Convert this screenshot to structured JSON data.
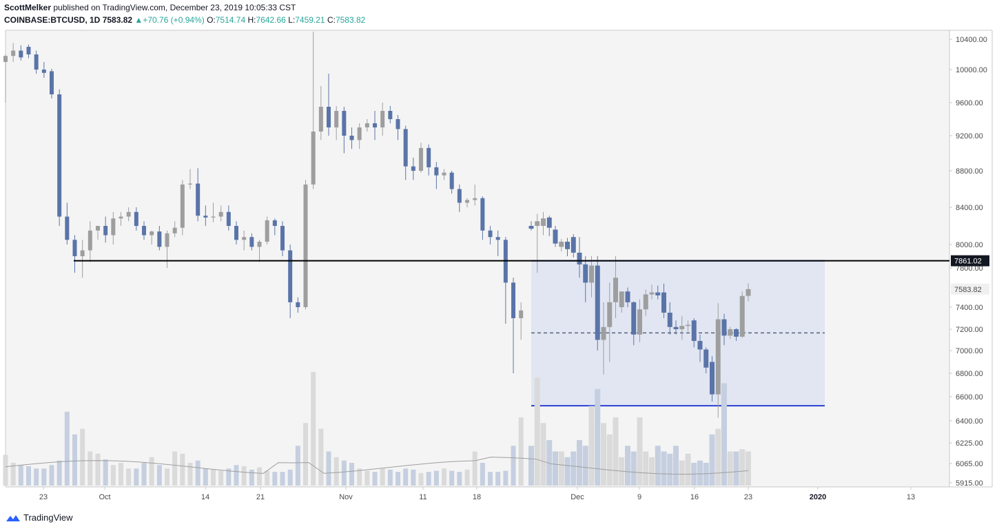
{
  "header": {
    "author": "ScottMelker",
    "published_text": "published on TradingView.com, December 23, 2019 10:05:33 CST",
    "symbol": "COINBASE:BTCUSD, 1D",
    "last": "7583.82",
    "change_arrow": "▲",
    "change": "+70.76 (+0.94%)",
    "o_label": "O:",
    "o_value": "7514.74",
    "h_label": "H:",
    "h_value": "7642.66",
    "l_label": "L:",
    "l_value": "7459.21",
    "c_label": "C:",
    "c_value": "7583.82"
  },
  "footer": {
    "brand": "TradingView"
  },
  "colors": {
    "background": "#f4f4f4",
    "bull": "#9e9e9e",
    "bear": "#5a74a8",
    "volume_bull": "#dadada",
    "volume_bear": "#c5cfe0",
    "range_fill": "#e1e6f2",
    "range_line": "#2a3dd4",
    "resistance_line": "#000000",
    "midline": "#55607a",
    "volume_ma": "#9e9e9e"
  },
  "chart_data": {
    "type": "candlestick",
    "x_ticks": [
      "23",
      "Oct",
      "14",
      "21",
      "Nov",
      "11",
      "18",
      "Dec",
      "9",
      "16",
      "23",
      "2020",
      "13"
    ],
    "y_ticks": [
      10400,
      10000,
      9600,
      9200,
      8800,
      8400,
      8000,
      7800,
      7400,
      7200,
      7000,
      6800,
      6600,
      6400,
      6225,
      6065,
      5915
    ],
    "y_tick_labels": [
      "10400.00",
      "10000.00",
      "9600.00",
      "9200.00",
      "8800.00",
      "8400.00",
      "8000.00",
      "7800.00",
      "7400.00",
      "7200.00",
      "7000.00",
      "6800.00",
      "6600.00",
      "6400.00",
      "6225.00",
      "6065.00",
      "5915.00"
    ],
    "price_labels": {
      "resistance": "7861.02",
      "last": "7583.82"
    },
    "resistance_level": 7861.02,
    "range_box": {
      "start_date": "Nov 25",
      "end_date": "Jan 1",
      "top": 7861.02,
      "bottom": 6525,
      "mid": 7165
    },
    "grid": false,
    "candles": [
      {
        "o": 8200,
        "h": 8250,
        "l": 8150,
        "c": 8170
      },
      {
        "o": 8200,
        "h": 8330,
        "l": 7750,
        "c": 8250
      },
      {
        "o": 8200,
        "h": 8350,
        "l": 8100,
        "c": 8280
      },
      {
        "o": 8290,
        "h": 8310,
        "l": 8090,
        "c": 8180
      },
      {
        "o": 8160,
        "h": 8200,
        "l": 7980,
        "c": 8010
      },
      {
        "o": 7980,
        "h": 8060,
        "l": 7940,
        "c": 8030
      },
      {
        "o": 8030,
        "h": 8070,
        "l": 7900,
        "c": 7960
      },
      {
        "o": 8080,
        "h": 8110,
        "l": 7890,
        "c": 7930
      },
      {
        "o": 7930,
        "h": 8080,
        "l": 7700,
        "c": 7830
      },
      {
        "o": 7830,
        "h": 7900,
        "l": 7450,
        "c": 7650
      },
      {
        "o": 7650,
        "h": 7900,
        "l": 7500,
        "c": 7820
      },
      {
        "o": 7820,
        "h": 7900,
        "l": 7000,
        "c": 7100
      },
      {
        "o": 7100,
        "h": 7450,
        "l": 6790,
        "c": 7220
      },
      {
        "o": 7220,
        "h": 7650,
        "l": 6900,
        "c": 7450
      },
      {
        "o": 7450,
        "h": 7900,
        "l": 7300,
        "c": 7700
      },
      {
        "o": 7400,
        "h": 7550,
        "l": 7350,
        "c": 7560
      },
      {
        "o": 7560,
        "h": 7600,
        "l": 7400,
        "c": 7450
      },
      {
        "o": 7450,
        "h": 7460,
        "l": 7050,
        "c": 7150
      },
      {
        "o": 7150,
        "h": 7480,
        "l": 7080,
        "c": 7380
      },
      {
        "o": 7380,
        "h": 7580,
        "l": 7320,
        "c": 7530
      },
      {
        "o": 7530,
        "h": 7630,
        "l": 7480,
        "c": 7550
      },
      {
        "o": 7550,
        "h": 7620,
        "l": 7480,
        "c": 7520
      },
      {
        "o": 7550,
        "h": 7640,
        "l": 7300,
        "c": 7350
      },
      {
        "o": 7350,
        "h": 7450,
        "l": 7150,
        "c": 7220
      },
      {
        "o": 7220,
        "h": 7280,
        "l": 7150,
        "c": 7200
      },
      {
        "o": 7200,
        "h": 7320,
        "l": 7100,
        "c": 7230
      },
      {
        "o": 7230,
        "h": 7280,
        "l": 7180,
        "c": 7240
      },
      {
        "o": 7280,
        "h": 7300,
        "l": 7030,
        "c": 7090
      },
      {
        "o": 7090,
        "h": 7150,
        "l": 6900,
        "c": 7010
      },
      {
        "o": 7010,
        "h": 7030,
        "l": 6800,
        "c": 6850
      },
      {
        "o": 6900,
        "h": 6950,
        "l": 6560,
        "c": 6620
      },
      {
        "o": 6620,
        "h": 7440,
        "l": 6425,
        "c": 7290
      },
      {
        "o": 7290,
        "h": 7340,
        "l": 7050,
        "c": 7140
      },
      {
        "o": 7140,
        "h": 7220,
        "l": 7110,
        "c": 7200
      },
      {
        "o": 7200,
        "h": 7210,
        "l": 7090,
        "c": 7130
      },
      {
        "o": 7130,
        "h": 7560,
        "l": 7120,
        "c": 7514
      },
      {
        "o": 7514.74,
        "h": 7642.66,
        "l": 7459.21,
        "c": 7583.82
      }
    ],
    "candles_before_box_start_note": "",
    "volume": [
      0.35,
      0.95,
      0.55,
      0.4,
      0.3,
      0.3,
      0.25,
      0.3,
      0.4,
      0.35,
      0.7,
      0.85,
      0.55,
      0.45,
      0.6,
      0.25,
      0.35,
      0.3,
      0.6,
      0.3,
      0.25,
      0.35,
      0.3,
      0.28,
      0.35,
      0.22,
      0.28,
      0.2,
      0.22,
      0.2,
      0.45,
      0.5,
      0.9,
      0.3,
      0.3,
      0.32,
      0.3
    ]
  }
}
